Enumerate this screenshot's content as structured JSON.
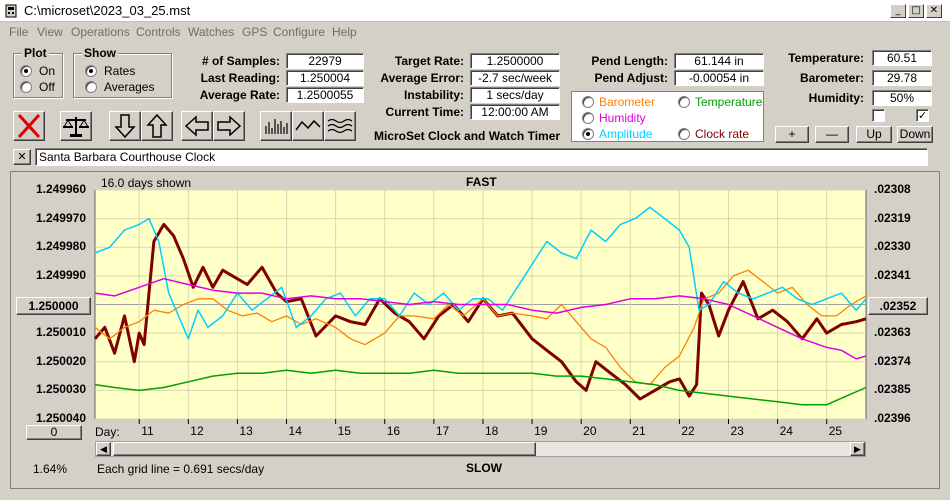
{
  "window": {
    "title": "C:\\microset\\2023_03_25.mst"
  },
  "menu": [
    "File",
    "View",
    "Operations",
    "Controls",
    "Watches",
    "GPS",
    "Configure",
    "Help"
  ],
  "plot_group": {
    "title": "Plot",
    "options": [
      "On",
      "Off"
    ],
    "selected": "On"
  },
  "show_group": {
    "title": "Show",
    "options": [
      "Rates",
      "Averages"
    ],
    "selected": "Rates"
  },
  "stats": {
    "samples_label": "# of Samples:",
    "samples_value": "22979",
    "last_reading_label": "Last Reading:",
    "last_reading_value": "1.250004",
    "average_rate_label": "Average Rate:",
    "average_rate_value": "1.2500055"
  },
  "target": {
    "target_rate_label": "Target Rate:",
    "target_rate_value": "1.2500000",
    "average_error_label": "Average Error:",
    "average_error_value": "-2.7 sec/week",
    "instability_label": "Instability:",
    "instability_value": "1 secs/day",
    "current_time_label": "Current Time:",
    "current_time_value": "12:00:00 AM",
    "app_caption": "MicroSet Clock and Watch Timer"
  },
  "pendulum": {
    "length_label": "Pend Length:",
    "length_value": "61.144 in",
    "adjust_label": "Pend Adjust:",
    "adjust_value": "-0.00054 in"
  },
  "series_selector": {
    "options": [
      {
        "label": "Barometer",
        "color": "#ff8000",
        "selected": false
      },
      {
        "label": "Temperature",
        "color": "#00a000",
        "selected": false
      },
      {
        "label": "Humidity",
        "color": "#e000e0",
        "selected": false
      },
      {
        "label": "Clock rate",
        "color": "#800000",
        "selected": false
      },
      {
        "label": "Amplitude",
        "color": "#00d0ff",
        "selected": true
      }
    ]
  },
  "environment": {
    "temperature_label": "Temperature:",
    "temperature_value": "60.51",
    "barometer_label": "Barometer:",
    "barometer_value": "29.78",
    "humidity_label": "Humidity:",
    "humidity_value": "50%",
    "checkbox1_checked": false,
    "checkbox2_checked": true,
    "buttons": [
      "+",
      "—",
      "Up",
      "Down"
    ]
  },
  "description": {
    "value": "Santa Barbara Courthouse Clock",
    "clear_label": "✕"
  },
  "chart_data": {
    "type": "line",
    "title": "FAST",
    "bottom_title": "SLOW",
    "info_left": "16.0 days shown",
    "grid_note": "Each grid line = 0.691 secs/day",
    "percent_label": "1.64%",
    "center_left_button": "1.250000",
    "center_right_button": ".02352",
    "zero_button": "0",
    "xlabel": "Day:",
    "x_ticks": [
      11,
      12,
      13,
      14,
      15,
      16,
      17,
      18,
      19,
      20,
      21,
      22,
      23,
      24,
      25
    ],
    "xlim": [
      10.1,
      25.8
    ],
    "left_axis": {
      "ticks": [
        "1.249960",
        "1.249970",
        "1.249980",
        "1.249990",
        "1.250000",
        "1.250010",
        "1.250020",
        "1.250030",
        "1.250040"
      ],
      "ylim": [
        1.24996,
        1.25004
      ]
    },
    "right_axis": {
      "ticks": [
        ".02308",
        ".02319",
        ".02330",
        ".02341",
        ".02352",
        ".02363",
        ".02374",
        ".02385",
        ".02396"
      ]
    },
    "series": [
      {
        "name": "Clock rate",
        "color": "#800000",
        "width": 3,
        "x": [
          10.1,
          10.3,
          10.5,
          10.7,
          10.9,
          11.0,
          11.1,
          11.3,
          11.5,
          11.7,
          11.9,
          12.1,
          12.3,
          12.5,
          12.7,
          12.9,
          13.2,
          13.5,
          13.8,
          14.0,
          14.3,
          14.6,
          15.0,
          15.3,
          15.6,
          15.9,
          16.2,
          16.5,
          16.8,
          17.1,
          17.4,
          17.7,
          18.0,
          18.3,
          18.6,
          19.0,
          19.3,
          19.6,
          19.9,
          20.1,
          20.3,
          20.6,
          20.9,
          21.2,
          21.5,
          21.8,
          22.0,
          22.2,
          22.35,
          22.45,
          22.6,
          22.8,
          23.0,
          23.3,
          23.6,
          23.9,
          24.2,
          24.5,
          24.8,
          25.0,
          25.3,
          25.6,
          25.8
        ],
        "y": [
          1.250012,
          1.250008,
          1.250017,
          1.250004,
          1.25002,
          1.25001,
          1.250014,
          1.249978,
          1.249972,
          1.249976,
          1.249984,
          1.249994,
          1.249987,
          1.249994,
          1.249988,
          1.24999,
          1.249993,
          1.249987,
          1.249996,
          1.249999,
          1.249998,
          1.250011,
          1.250004,
          1.250006,
          1.250007,
          1.249998,
          1.250003,
          1.250006,
          1.250012,
          1.250004,
          1.25,
          1.250006,
          1.249998,
          1.250004,
          1.250003,
          1.250012,
          1.250016,
          1.25002,
          1.250027,
          1.25003,
          1.25002,
          1.250024,
          1.250028,
          1.250033,
          1.25003,
          1.250027,
          1.250026,
          1.250032,
          1.250028,
          1.249996,
          1.25,
          1.250011,
          1.250002,
          1.249992,
          1.250005,
          1.250002,
          1.250006,
          1.250012,
          1.250005,
          1.25001,
          1.250007,
          1.250006,
          1.250005
        ]
      },
      {
        "name": "Barometer",
        "color": "#ff8000",
        "width": 1.3,
        "x": [
          10.1,
          10.4,
          10.7,
          11.0,
          11.3,
          11.6,
          11.9,
          12.2,
          12.5,
          12.8,
          13.1,
          13.4,
          13.7,
          14.0,
          14.3,
          14.6,
          15.0,
          15.3,
          15.6,
          16.0,
          16.3,
          16.6,
          17.0,
          17.3,
          17.6,
          18.0,
          18.3,
          18.6,
          19.0,
          19.3,
          19.6,
          19.9,
          20.2,
          20.5,
          20.8,
          21.1,
          21.4,
          21.7,
          22.0,
          22.3,
          22.5,
          22.8,
          23.1,
          23.4,
          23.7,
          24.0,
          24.3,
          24.6,
          24.9,
          25.2,
          25.5,
          25.8
        ],
        "y": [
          1.250008,
          1.250012,
          1.250008,
          1.250006,
          1.250002,
          1.250003,
          1.25,
          1.249998,
          1.249998,
          1.250002,
          1.250004,
          1.250003,
          1.250006,
          1.250004,
          1.250007,
          1.250005,
          1.250008,
          1.250012,
          1.250014,
          1.25001,
          1.250004,
          1.250004,
          1.250005,
          1.25,
          1.250004,
          1.249998,
          1.250004,
          1.250003,
          1.250004,
          1.250005,
          1.25,
          1.250006,
          1.250012,
          1.250015,
          1.250022,
          1.250027,
          1.250028,
          1.250022,
          1.250018,
          1.250008,
          1.249998,
          1.249996,
          1.24999,
          1.249988,
          1.249992,
          1.249996,
          1.249994,
          1.25,
          1.250004,
          1.250004,
          1.25,
          1.249997
        ]
      },
      {
        "name": "Amplitude",
        "color": "#00d0ff",
        "width": 1.5,
        "x": [
          10.1,
          10.4,
          10.7,
          11.0,
          11.2,
          11.4,
          11.6,
          11.8,
          12.0,
          12.2,
          12.4,
          12.7,
          13.0,
          13.3,
          13.6,
          13.9,
          14.2,
          14.5,
          14.8,
          15.1,
          15.4,
          15.7,
          16.0,
          16.3,
          16.6,
          16.9,
          17.2,
          17.5,
          17.8,
          18.1,
          18.4,
          18.7,
          19.0,
          19.3,
          19.6,
          19.9,
          20.2,
          20.5,
          20.8,
          21.1,
          21.4,
          21.7,
          22.0,
          22.2,
          22.4,
          22.6,
          22.9,
          23.2,
          23.5,
          23.8,
          24.1,
          24.4,
          24.7,
          25.0,
          25.3,
          25.6,
          25.8
        ],
        "y": [
          1.249982,
          1.24998,
          1.249974,
          1.249972,
          1.24997,
          1.249978,
          1.249996,
          1.250004,
          1.250012,
          1.250002,
          1.250008,
          1.250004,
          1.249996,
          1.250002,
          1.249998,
          1.249994,
          1.250008,
          1.250004,
          1.249998,
          1.249996,
          1.250004,
          1.249998,
          1.249998,
          1.250004,
          1.249996,
          1.25,
          1.249996,
          1.250002,
          1.249998,
          1.249998,
          1.250002,
          1.249994,
          1.249986,
          1.249978,
          1.249982,
          1.249984,
          1.249974,
          1.249978,
          1.249972,
          1.24997,
          1.249966,
          1.24997,
          1.249974,
          1.24998,
          1.250002,
          1.25,
          1.249992,
          1.249996,
          1.249998,
          1.249996,
          1.249994,
          1.249998,
          1.25,
          1.249998,
          1.249996,
          1.250002,
          1.249998
        ]
      },
      {
        "name": "Humidity",
        "color": "#e000e0",
        "width": 1.5,
        "x": [
          10.1,
          10.5,
          11.0,
          11.5,
          12.0,
          12.5,
          13.0,
          13.5,
          14.0,
          14.5,
          15.0,
          15.5,
          16.0,
          16.5,
          17.0,
          17.5,
          18.0,
          18.5,
          19.0,
          19.5,
          20.0,
          20.5,
          21.0,
          21.5,
          22.0,
          22.5,
          23.0,
          23.5,
          24.0,
          24.5,
          25.0,
          25.3,
          25.6,
          25.8
        ],
        "y": [
          1.249996,
          1.249997,
          1.249994,
          1.249991,
          1.249993,
          1.249995,
          1.249996,
          1.249996,
          1.249998,
          1.249997,
          1.249998,
          1.249998,
          1.249999,
          1.25,
          1.249999,
          1.25,
          1.25,
          1.25,
          1.250002,
          1.250003,
          1.250001,
          1.25,
          1.249998,
          1.249998,
          1.249997,
          1.249998,
          1.25,
          1.250004,
          1.250008,
          1.250012,
          1.250015,
          1.250016,
          1.250019,
          1.250018
        ]
      },
      {
        "name": "Temperature",
        "color": "#00a000",
        "width": 1.5,
        "x": [
          10.1,
          10.5,
          11.0,
          11.5,
          12.0,
          12.5,
          13.0,
          13.5,
          14.0,
          14.5,
          15.0,
          15.5,
          16.0,
          16.5,
          17.0,
          17.5,
          18.0,
          18.5,
          19.0,
          19.5,
          20.0,
          20.5,
          21.0,
          21.5,
          22.0,
          22.5,
          23.0,
          23.5,
          24.0,
          24.5,
          25.0,
          25.4,
          25.8
        ],
        "y": [
          1.250028,
          1.250029,
          1.25003,
          1.250029,
          1.250027,
          1.250025,
          1.250024,
          1.250024,
          1.250023,
          1.250024,
          1.250023,
          1.250024,
          1.250024,
          1.250024,
          1.250023,
          1.250024,
          1.250024,
          1.250024,
          1.250024,
          1.250025,
          1.250025,
          1.250026,
          1.250027,
          1.250028,
          1.25003,
          1.250031,
          1.250032,
          1.250033,
          1.250034,
          1.250035,
          1.250035,
          1.250032,
          1.250029
        ]
      }
    ]
  }
}
